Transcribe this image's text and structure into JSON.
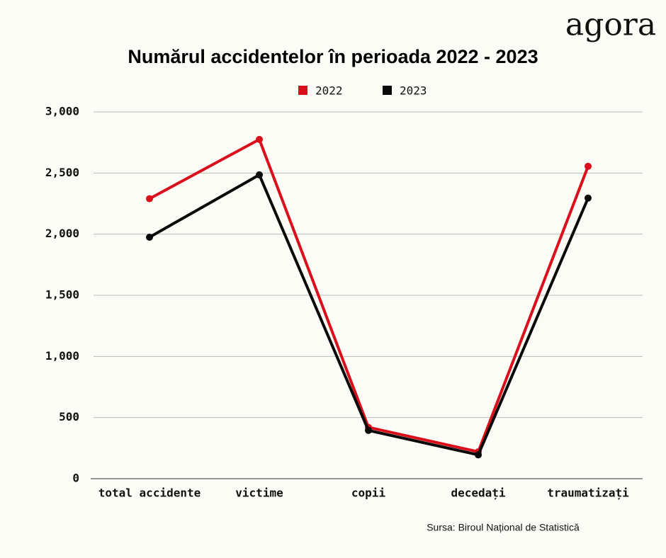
{
  "chart_data": {
    "type": "line",
    "title": "Numărul accidentelor în perioada 2022 - 2023",
    "logo": "agora",
    "source": "Sursa: Biroul Național de Statistică",
    "categories": [
      "total accidente",
      "victime",
      "copii",
      "decedați",
      "traumatizați"
    ],
    "series": [
      {
        "name": "2022",
        "color": "#d9101c",
        "values": [
          2290,
          2775,
          420,
          220,
          2555
        ]
      },
      {
        "name": "2023",
        "color": "#0a0a0a",
        "values": [
          1975,
          2485,
          395,
          195,
          2295
        ]
      }
    ],
    "ylim": [
      0,
      3000
    ],
    "yticks": [
      0,
      500,
      {
        "value": 1000,
        "label": "1,000"
      },
      {
        "value": 1500,
        "label": "1,500"
      },
      {
        "value": 2000,
        "label": "2,000"
      },
      {
        "value": 2500,
        "label": "2,500"
      },
      {
        "value": 3000,
        "label": "3,000"
      }
    ],
    "grid": true
  }
}
